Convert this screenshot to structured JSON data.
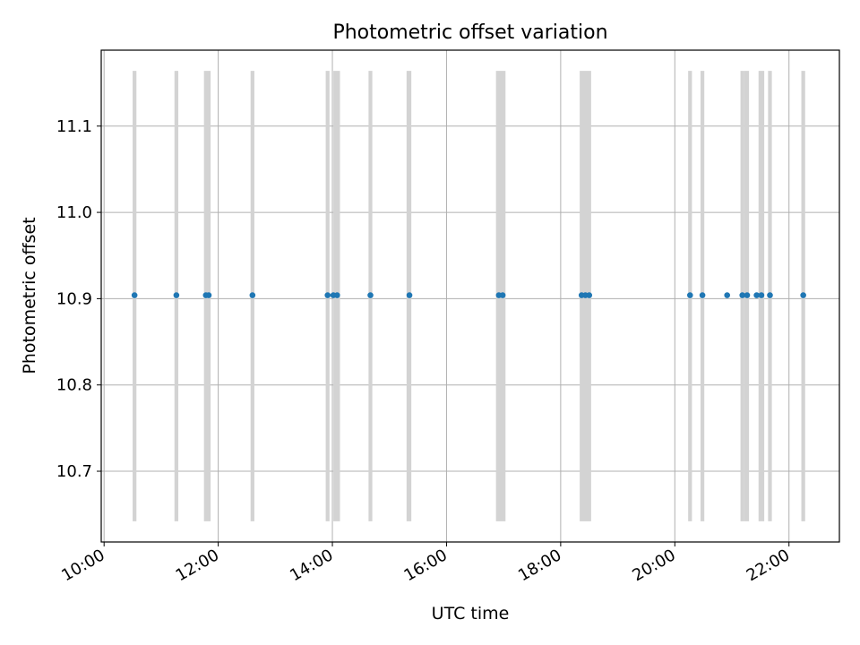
{
  "chart_data": {
    "type": "scatter",
    "title": "Photometric offset variation",
    "xlabel": "UTC time",
    "ylabel": "Photometric offset",
    "xlim": [
      "09:57",
      "22:53"
    ],
    "ylim": [
      10.618,
      11.188
    ],
    "x_ticks": [
      "10:00",
      "12:00",
      "14:00",
      "16:00",
      "18:00",
      "20:00",
      "22:00"
    ],
    "y_ticks": [
      10.7,
      10.8,
      10.9,
      11.0,
      11.1
    ],
    "grid": true,
    "point_color": "#1f77b4",
    "band_color": "#d3d3d3",
    "band_y_range": [
      10.642,
      11.164
    ],
    "bands": [
      [
        "10:30",
        "10:34"
      ],
      [
        "11:14",
        "11:18"
      ],
      [
        "11:45",
        "11:52"
      ],
      [
        "12:34",
        "12:38"
      ],
      [
        "13:53",
        "13:57"
      ],
      [
        "14:01",
        "14:08"
      ],
      [
        "14:38",
        "14:42"
      ],
      [
        "15:18",
        "15:23"
      ],
      [
        "16:52",
        "17:02"
      ],
      [
        "18:20",
        "18:32"
      ],
      [
        "20:14",
        "20:18"
      ],
      [
        "20:27",
        "20:31"
      ],
      [
        "21:09",
        "21:13"
      ],
      [
        "21:13",
        "21:18"
      ],
      [
        "21:28",
        "21:34"
      ],
      [
        "21:38",
        "21:42"
      ],
      [
        "22:13",
        "22:17"
      ]
    ],
    "points": [
      {
        "x": "10:32",
        "y": 10.904
      },
      {
        "x": "11:16",
        "y": 10.904
      },
      {
        "x": "11:47",
        "y": 10.904
      },
      {
        "x": "11:50",
        "y": 10.904
      },
      {
        "x": "12:36",
        "y": 10.904
      },
      {
        "x": "13:55",
        "y": 10.904
      },
      {
        "x": "14:01",
        "y": 10.904
      },
      {
        "x": "14:05",
        "y": 10.904
      },
      {
        "x": "14:40",
        "y": 10.904
      },
      {
        "x": "15:21",
        "y": 10.904
      },
      {
        "x": "16:55",
        "y": 10.904
      },
      {
        "x": "16:59",
        "y": 10.904
      },
      {
        "x": "18:22",
        "y": 10.904
      },
      {
        "x": "18:26",
        "y": 10.904
      },
      {
        "x": "18:30",
        "y": 10.904
      },
      {
        "x": "20:16",
        "y": 10.904
      },
      {
        "x": "20:29",
        "y": 10.904
      },
      {
        "x": "20:55",
        "y": 10.904
      },
      {
        "x": "21:11",
        "y": 10.904
      },
      {
        "x": "21:16",
        "y": 10.904
      },
      {
        "x": "21:26",
        "y": 10.904
      },
      {
        "x": "21:31",
        "y": 10.904
      },
      {
        "x": "21:40",
        "y": 10.904
      },
      {
        "x": "22:15",
        "y": 10.904
      }
    ]
  }
}
